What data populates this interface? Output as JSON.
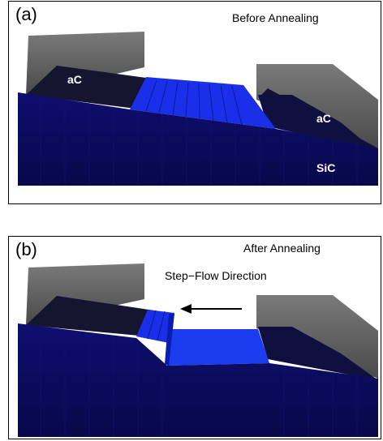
{
  "panels": [
    {
      "tag": "(a)",
      "title": "Before Annealing",
      "labels": {
        "ac_left": "aC",
        "ac_right": "aC",
        "substrate": "SiC"
      }
    },
    {
      "tag": "(b)",
      "title": "After Annealing",
      "arrow_label": "Step−Flow Direction"
    }
  ],
  "colors": {
    "frame": "#000000",
    "substrate_front": "#0c0c64",
    "substrate_top": "#0a0a4c",
    "highlight_step": "#1a30e8",
    "highlight_terrace": "#1c3cf0",
    "mask_wall": "#6a6a6a",
    "mask_top": "#1a1a22",
    "label_text": "#ffffff"
  }
}
